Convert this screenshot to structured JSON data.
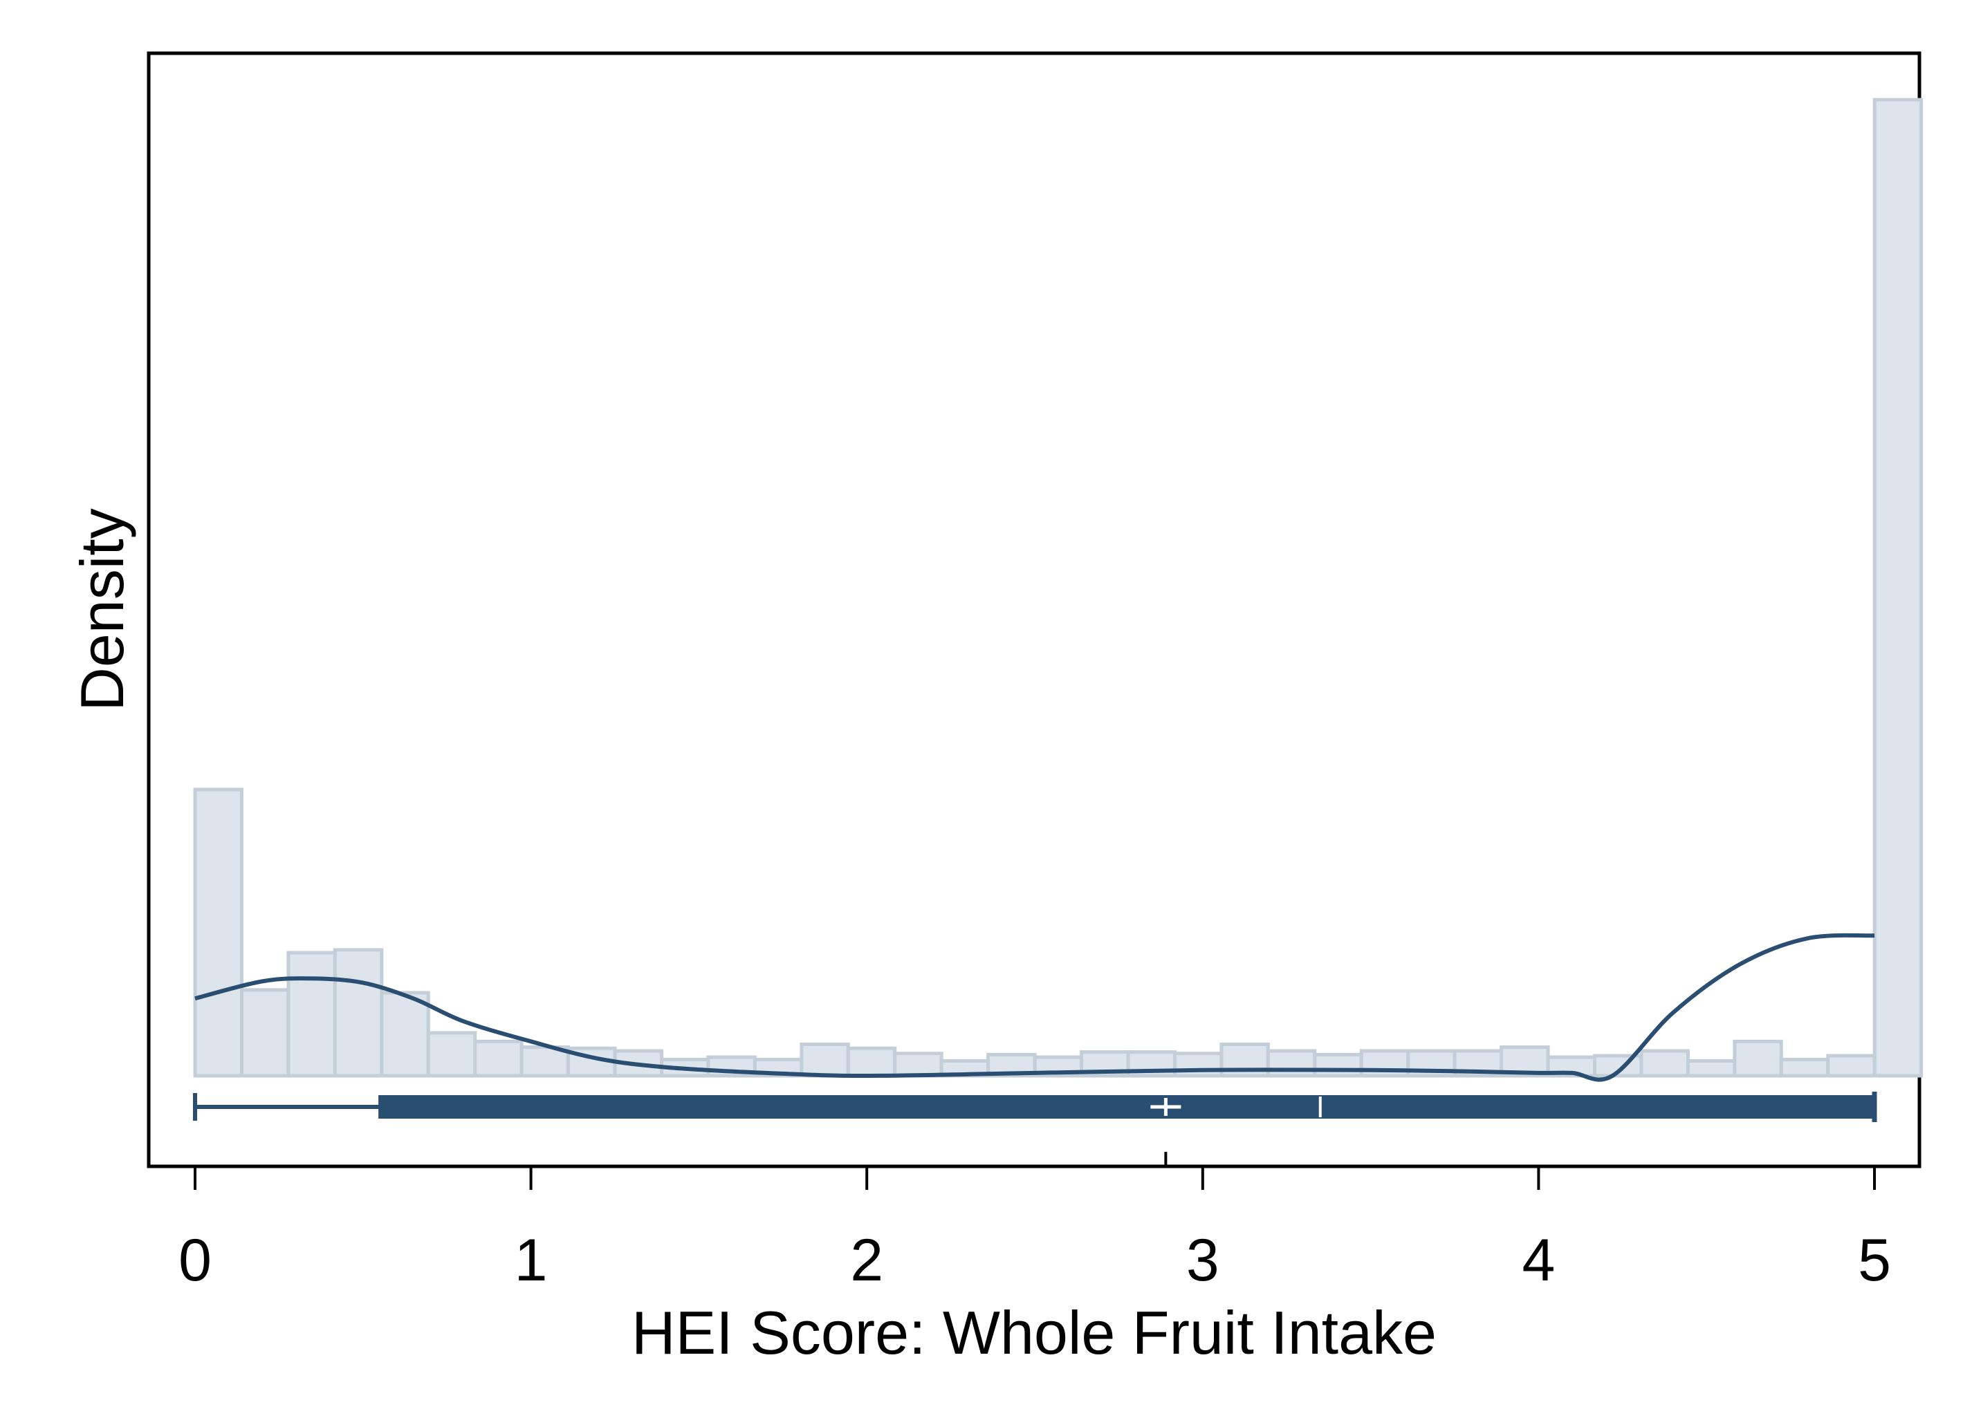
{
  "chart_data": {
    "type": "bar",
    "subtype": "histogram-with-density-and-boxplot",
    "title": "",
    "xlabel": "HEI Score: Whole Fruit Intake",
    "ylabel": "Density",
    "xlim": [
      0,
      5
    ],
    "x_ticks": [
      "0",
      "1",
      "2",
      "3",
      "4",
      "5"
    ],
    "y_ticks": [],
    "grid": false,
    "legend": "none",
    "histogram": {
      "bin_start": 0,
      "bin_width": 0.1389,
      "heights": [
        1.0,
        0.3,
        0.43,
        0.44,
        0.29,
        0.15,
        0.12,
        0.1,
        0.096,
        0.087,
        0.057,
        0.065,
        0.057,
        0.11,
        0.096,
        0.078,
        0.052,
        0.074,
        0.065,
        0.083,
        0.083,
        0.078,
        0.11,
        0.087,
        0.074,
        0.087,
        0.087,
        0.087,
        0.1,
        0.065,
        0.07,
        0.087,
        0.052,
        0.12,
        0.057,
        0.07,
        3.41
      ],
      "fill_color": "#dde4ec",
      "edge_color": "#c3ced9"
    },
    "density_curve": {
      "x": [
        0,
        0.2,
        0.35,
        0.5,
        0.65,
        0.8,
        1.0,
        1.2,
        1.4,
        1.7,
        2.0,
        2.5,
        3.0,
        3.5,
        3.8,
        4.0,
        4.1,
        4.22,
        4.4,
        4.6,
        4.8,
        5.0
      ],
      "y": [
        0.27,
        0.33,
        0.34,
        0.325,
        0.27,
        0.19,
        0.12,
        0.06,
        0.03,
        0.01,
        0.0,
        0.01,
        0.02,
        0.02,
        0.015,
        0.01,
        0.01,
        0.0,
        0.22,
        0.39,
        0.48,
        0.49
      ],
      "color": "#2a4e72"
    },
    "boxplot": {
      "min": 0,
      "q1": 0.55,
      "median": 3.35,
      "mean": 2.89,
      "q3": 5,
      "max": 5,
      "color": "#2a4e72"
    }
  }
}
